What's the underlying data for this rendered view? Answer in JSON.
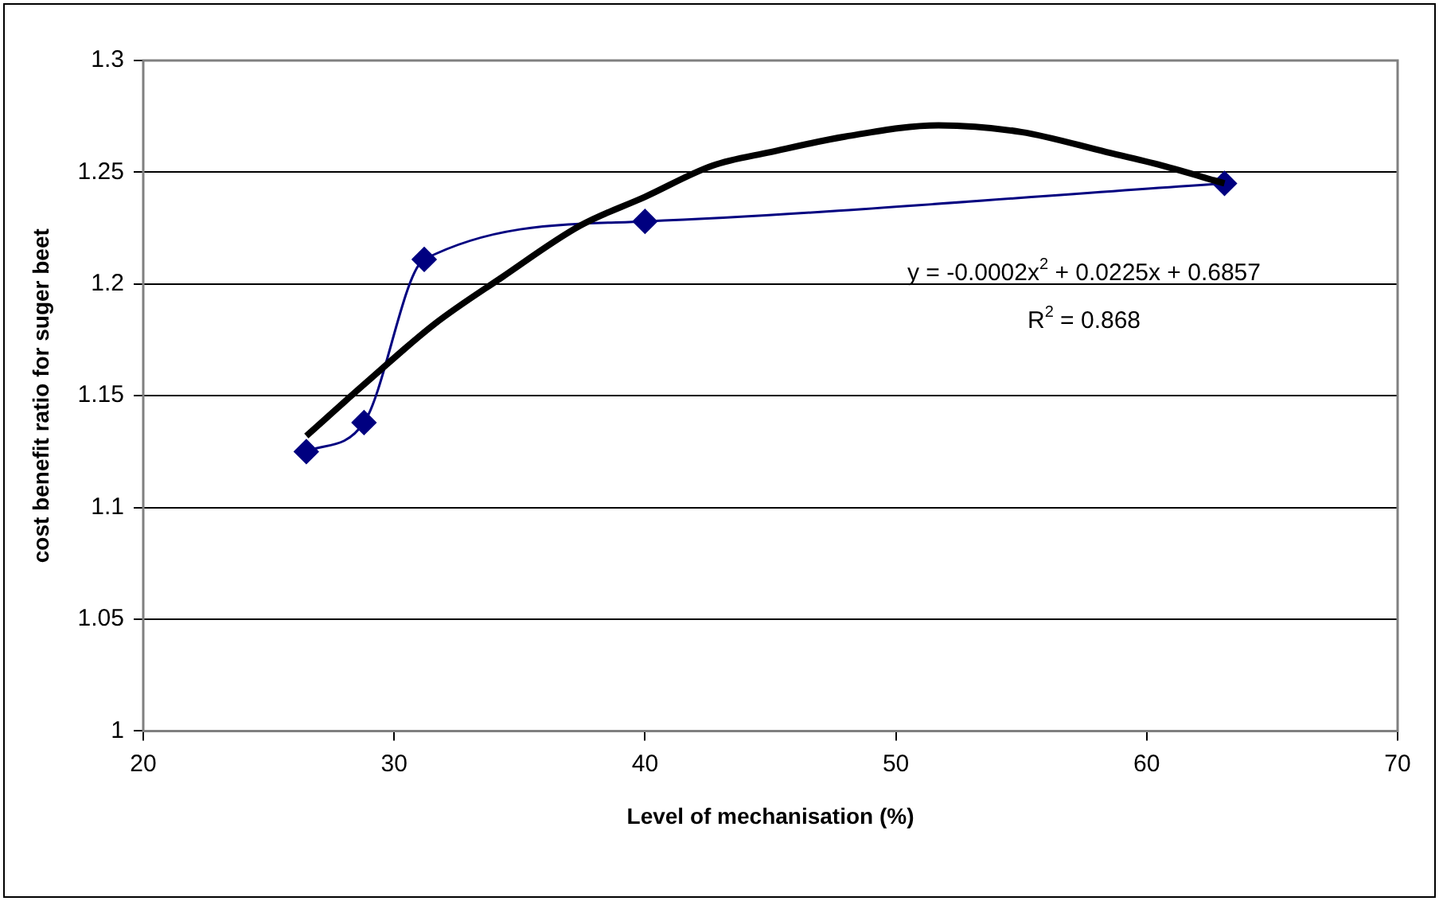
{
  "chart_data": {
    "type": "line",
    "xlabel": "Level of mechanisation (%)",
    "ylabel": "cost benefit ratio for suger beet",
    "xlim": [
      20,
      70
    ],
    "xticks": [
      20,
      30,
      40,
      50,
      60,
      70
    ],
    "ylim": [
      1,
      1.3
    ],
    "yticks": [
      1,
      1.05,
      1.1,
      1.15,
      1.2,
      1.25,
      1.3
    ],
    "grid": "y",
    "legend": false,
    "series": [
      {
        "color": "#000080",
        "marker": "diamond",
        "x": [
          26.5,
          28.8,
          31.2,
          40,
          63.1
        ],
        "values": [
          1.125,
          1.138,
          1.211,
          1.228,
          1.245
        ]
      },
      {
        "color": "#000000",
        "marker": "none",
        "x": [
          26.5,
          28.9,
          31.6,
          34.3,
          37.4,
          40,
          42.7,
          45,
          48,
          51.7,
          55,
          58.4,
          60.6,
          63.1
        ],
        "values": [
          1.132,
          1.156,
          1.182,
          1.203,
          1.226,
          1.239,
          1.253,
          1.259,
          1.266,
          1.271,
          1.268,
          1.259,
          1.253,
          1.245
        ]
      }
    ],
    "annotations": [
      "y = -0.0002x$^{2}$ + 0.0225x + 0.6857",
      "R$^{2}$ = 0.868"
    ]
  }
}
